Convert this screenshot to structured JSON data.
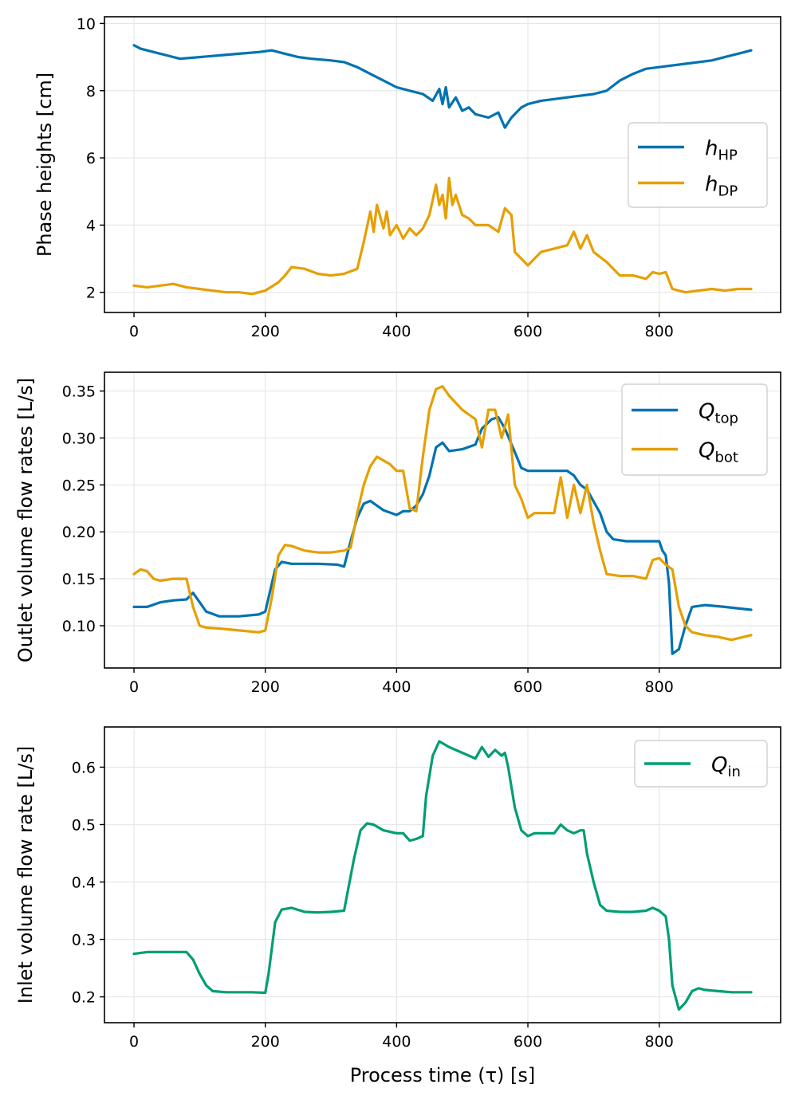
{
  "chart_data": [
    {
      "type": "line",
      "ylabel": "Phase heights [cm]",
      "xlabel": "",
      "xlim": [
        -45,
        985
      ],
      "ylim": [
        1.4,
        10.2
      ],
      "xticks": [
        0,
        200,
        400,
        600,
        800
      ],
      "yticks": [
        2,
        4,
        6,
        8,
        10
      ],
      "grid": true,
      "legend_position": "center-right",
      "series": [
        {
          "var": "h",
          "sub": "HP",
          "color": "#0072b2",
          "x": [
            0,
            10,
            30,
            50,
            70,
            100,
            130,
            160,
            190,
            210,
            230,
            250,
            270,
            300,
            320,
            340,
            360,
            380,
            400,
            420,
            440,
            455,
            465,
            470,
            475,
            480,
            490,
            500,
            510,
            520,
            540,
            555,
            565,
            575,
            590,
            600,
            620,
            640,
            660,
            680,
            700,
            720,
            740,
            760,
            780,
            800,
            820,
            840,
            860,
            880,
            900,
            920,
            940
          ],
          "y": [
            9.35,
            9.25,
            9.15,
            9.05,
            8.95,
            9.0,
            9.05,
            9.1,
            9.15,
            9.2,
            9.1,
            9.0,
            8.95,
            8.9,
            8.85,
            8.7,
            8.5,
            8.3,
            8.1,
            8.0,
            7.9,
            7.7,
            8.05,
            7.6,
            8.1,
            7.5,
            7.8,
            7.4,
            7.5,
            7.3,
            7.2,
            7.35,
            6.9,
            7.2,
            7.5,
            7.6,
            7.7,
            7.75,
            7.8,
            7.85,
            7.9,
            8.0,
            8.3,
            8.5,
            8.65,
            8.7,
            8.75,
            8.8,
            8.85,
            8.9,
            9.0,
            9.1,
            9.2
          ]
        },
        {
          "var": "h",
          "sub": "DP",
          "color": "#e69f00",
          "x": [
            0,
            20,
            40,
            60,
            80,
            100,
            120,
            140,
            160,
            180,
            200,
            220,
            230,
            240,
            260,
            280,
            300,
            320,
            340,
            350,
            360,
            365,
            370,
            380,
            385,
            390,
            400,
            410,
            420,
            430,
            440,
            450,
            460,
            465,
            470,
            475,
            480,
            485,
            490,
            500,
            510,
            520,
            540,
            555,
            565,
            575,
            580,
            590,
            600,
            610,
            620,
            640,
            660,
            670,
            680,
            690,
            700,
            720,
            740,
            760,
            780,
            790,
            800,
            810,
            820,
            840,
            860,
            880,
            900,
            920,
            940
          ],
          "y": [
            2.2,
            2.15,
            2.2,
            2.25,
            2.15,
            2.1,
            2.05,
            2.0,
            2.0,
            1.95,
            2.05,
            2.3,
            2.5,
            2.75,
            2.7,
            2.55,
            2.5,
            2.55,
            2.7,
            3.5,
            4.4,
            3.8,
            4.6,
            3.9,
            4.4,
            3.7,
            4.0,
            3.6,
            3.9,
            3.7,
            3.9,
            4.3,
            5.2,
            4.6,
            4.9,
            4.2,
            5.4,
            4.6,
            4.9,
            4.3,
            4.2,
            4.0,
            4.0,
            3.8,
            4.5,
            4.3,
            3.2,
            3.0,
            2.8,
            3.0,
            3.2,
            3.3,
            3.4,
            3.8,
            3.3,
            3.7,
            3.2,
            2.9,
            2.5,
            2.5,
            2.4,
            2.6,
            2.55,
            2.6,
            2.1,
            2.0,
            2.05,
            2.1,
            2.05,
            2.1,
            2.1
          ]
        }
      ]
    },
    {
      "type": "line",
      "ylabel": "Outlet volume flow rates [L/s]",
      "xlabel": "",
      "xlim": [
        -45,
        985
      ],
      "ylim": [
        0.055,
        0.37
      ],
      "xticks": [
        0,
        200,
        400,
        600,
        800
      ],
      "yticks": [
        0.1,
        0.15,
        0.2,
        0.25,
        0.3,
        0.35
      ],
      "ytick_labels": [
        "0.10",
        "0.15",
        "0.20",
        "0.25",
        "0.30",
        "0.35"
      ],
      "grid": true,
      "legend_position": "top-right",
      "series": [
        {
          "var": "Q",
          "sub": "top",
          "color": "#0072b2",
          "x": [
            0,
            20,
            40,
            60,
            80,
            90,
            100,
            110,
            130,
            160,
            190,
            200,
            205,
            215,
            225,
            240,
            280,
            310,
            320,
            330,
            340,
            350,
            360,
            380,
            400,
            410,
            420,
            430,
            440,
            450,
            460,
            470,
            480,
            500,
            520,
            530,
            545,
            555,
            565,
            580,
            590,
            600,
            620,
            640,
            660,
            670,
            680,
            690,
            710,
            720,
            730,
            750,
            770,
            800,
            805,
            810,
            815,
            820,
            830,
            840,
            850,
            870,
            900,
            940
          ],
          "y": [
            0.12,
            0.12,
            0.125,
            0.127,
            0.128,
            0.135,
            0.125,
            0.115,
            0.11,
            0.11,
            0.112,
            0.115,
            0.13,
            0.16,
            0.168,
            0.166,
            0.166,
            0.165,
            0.163,
            0.19,
            0.215,
            0.23,
            0.233,
            0.223,
            0.218,
            0.222,
            0.222,
            0.228,
            0.24,
            0.26,
            0.29,
            0.295,
            0.286,
            0.288,
            0.293,
            0.31,
            0.32,
            0.322,
            0.31,
            0.285,
            0.268,
            0.265,
            0.265,
            0.265,
            0.265,
            0.26,
            0.25,
            0.245,
            0.22,
            0.2,
            0.192,
            0.19,
            0.19,
            0.19,
            0.18,
            0.175,
            0.145,
            0.07,
            0.075,
            0.1,
            0.12,
            0.122,
            0.12,
            0.117
          ]
        },
        {
          "var": "Q",
          "sub": "bot",
          "color": "#e69f00",
          "x": [
            0,
            10,
            20,
            30,
            40,
            60,
            80,
            90,
            100,
            110,
            130,
            160,
            190,
            200,
            210,
            220,
            230,
            240,
            260,
            280,
            300,
            320,
            330,
            340,
            350,
            360,
            370,
            390,
            400,
            410,
            420,
            430,
            440,
            450,
            460,
            470,
            480,
            500,
            510,
            520,
            530,
            540,
            550,
            560,
            570,
            580,
            590,
            600,
            610,
            620,
            640,
            650,
            660,
            670,
            680,
            690,
            700,
            710,
            720,
            740,
            760,
            780,
            790,
            800,
            810,
            820,
            830,
            840,
            850,
            870,
            890,
            910,
            940
          ],
          "y": [
            0.155,
            0.16,
            0.158,
            0.15,
            0.148,
            0.15,
            0.15,
            0.12,
            0.1,
            0.098,
            0.097,
            0.095,
            0.093,
            0.095,
            0.13,
            0.175,
            0.186,
            0.185,
            0.18,
            0.178,
            0.178,
            0.18,
            0.183,
            0.22,
            0.25,
            0.27,
            0.28,
            0.272,
            0.265,
            0.265,
            0.225,
            0.222,
            0.28,
            0.33,
            0.352,
            0.355,
            0.345,
            0.33,
            0.325,
            0.32,
            0.29,
            0.33,
            0.33,
            0.3,
            0.325,
            0.25,
            0.235,
            0.215,
            0.22,
            0.22,
            0.22,
            0.258,
            0.215,
            0.25,
            0.22,
            0.25,
            0.21,
            0.18,
            0.155,
            0.153,
            0.153,
            0.15,
            0.17,
            0.172,
            0.165,
            0.16,
            0.12,
            0.1,
            0.093,
            0.09,
            0.088,
            0.085,
            0.09
          ]
        }
      ]
    },
    {
      "type": "line",
      "ylabel": "Inlet volume flow rate [L/s]",
      "xlabel": "Process time (τ) [s]",
      "xlim": [
        -45,
        985
      ],
      "ylim": [
        0.155,
        0.67
      ],
      "xticks": [
        0,
        200,
        400,
        600,
        800
      ],
      "yticks": [
        0.2,
        0.3,
        0.4,
        0.5,
        0.6
      ],
      "ytick_labels": [
        "0.2",
        "0.3",
        "0.4",
        "0.5",
        "0.6"
      ],
      "grid": true,
      "legend_position": "top-right",
      "series": [
        {
          "var": "Q",
          "sub": "in",
          "color": "#009e73",
          "x": [
            0,
            20,
            40,
            60,
            80,
            90,
            100,
            110,
            120,
            140,
            160,
            180,
            200,
            205,
            215,
            225,
            240,
            260,
            280,
            300,
            320,
            325,
            335,
            345,
            355,
            365,
            380,
            400,
            410,
            420,
            430,
            440,
            445,
            455,
            465,
            480,
            500,
            520,
            530,
            540,
            550,
            560,
            565,
            570,
            580,
            590,
            600,
            610,
            620,
            640,
            650,
            660,
            670,
            680,
            685,
            690,
            700,
            710,
            720,
            740,
            760,
            780,
            790,
            800,
            810,
            815,
            820,
            830,
            840,
            850,
            860,
            870,
            890,
            910,
            940
          ],
          "y": [
            0.275,
            0.278,
            0.278,
            0.278,
            0.278,
            0.265,
            0.24,
            0.22,
            0.21,
            0.208,
            0.208,
            0.208,
            0.207,
            0.24,
            0.33,
            0.352,
            0.355,
            0.348,
            0.347,
            0.348,
            0.35,
            0.38,
            0.44,
            0.49,
            0.502,
            0.5,
            0.49,
            0.485,
            0.485,
            0.472,
            0.475,
            0.48,
            0.55,
            0.62,
            0.645,
            0.635,
            0.625,
            0.615,
            0.635,
            0.618,
            0.63,
            0.62,
            0.625,
            0.6,
            0.53,
            0.49,
            0.48,
            0.485,
            0.485,
            0.485,
            0.5,
            0.49,
            0.485,
            0.49,
            0.49,
            0.45,
            0.4,
            0.36,
            0.35,
            0.348,
            0.348,
            0.35,
            0.355,
            0.35,
            0.34,
            0.3,
            0.22,
            0.178,
            0.19,
            0.21,
            0.215,
            0.212,
            0.21,
            0.208,
            0.208
          ]
        }
      ]
    }
  ]
}
